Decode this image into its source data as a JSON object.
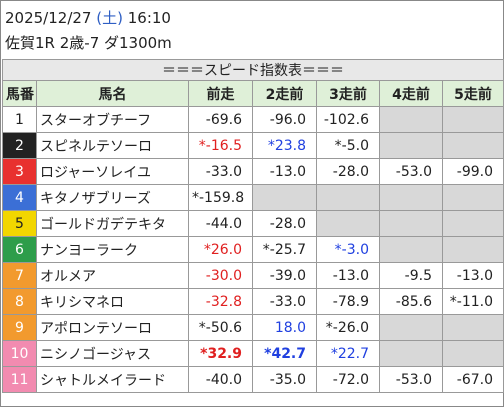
{
  "header": {
    "date": "2025/12/27",
    "weekday": "(土)",
    "time": "16:10",
    "race": "佐賀1R 2歳-7 ダ1300m"
  },
  "table": {
    "title": "＝＝＝スピード指数表＝＝＝",
    "columns": [
      "馬番",
      "馬名",
      "前走",
      "2走前",
      "3走前",
      "4走前",
      "5走前"
    ],
    "rows": [
      {
        "num": "1",
        "frame_color": "#ffffff",
        "name": "スターオブチーフ",
        "speeds": [
          "-69.6",
          "-96.0",
          "-102.6",
          null,
          null
        ]
      },
      {
        "num": "2",
        "frame_color": "#222222",
        "name": "スピネルテソーロ",
        "speeds": [
          {
            "text": "*-16.5",
            "color": "#e02020"
          },
          {
            "text": "*23.8",
            "color": "#2040e0"
          },
          "*-5.0",
          null,
          null
        ]
      },
      {
        "num": "3",
        "frame_color": "#e8312f",
        "name": "ロジャーソレイユ",
        "speeds": [
          "-33.0",
          "-13.0",
          "-28.0",
          "-53.0",
          "-99.0"
        ]
      },
      {
        "num": "4",
        "frame_color": "#3b6fd6",
        "name": "キタノザブリーズ",
        "speeds": [
          "*-159.8",
          null,
          null,
          null,
          null
        ]
      },
      {
        "num": "5",
        "frame_color": "#f2d600",
        "name": "ゴールドガデテキタ",
        "speeds": [
          "-44.0",
          "-28.0",
          null,
          null,
          null
        ]
      },
      {
        "num": "6",
        "frame_color": "#2e9d4a",
        "name": "ナンヨーラーク",
        "speeds": [
          {
            "text": "*26.0",
            "color": "#e02020"
          },
          "*-25.7",
          {
            "text": "*-3.0",
            "color": "#2040e0"
          },
          null,
          null
        ]
      },
      {
        "num": "7",
        "frame_color": "#f29a2e",
        "name": "オルメア",
        "speeds": [
          {
            "text": "-30.0",
            "color": "#e02020"
          },
          "-39.0",
          "-13.0",
          "-9.5",
          "-13.0"
        ]
      },
      {
        "num": "8",
        "frame_color": "#f29a2e",
        "name": "キリシマネロ",
        "speeds": [
          {
            "text": "-32.8",
            "color": "#e02020"
          },
          "-33.0",
          "-78.9",
          "-85.6",
          "*-11.0"
        ]
      },
      {
        "num": "9",
        "frame_color": "#f29a2e",
        "name": "アポロンテソーロ",
        "speeds": [
          "*-50.6",
          {
            "text": "18.0",
            "color": "#2040e0"
          },
          "*-26.0",
          null,
          null
        ]
      },
      {
        "num": "10",
        "frame_color": "#f28bb0",
        "name": "ニシノゴージャス",
        "speeds": [
          {
            "text": "*32.9",
            "color": "#e02020",
            "bold": true
          },
          {
            "text": "*42.7",
            "color": "#2040e0",
            "bold": true
          },
          {
            "text": "*22.7",
            "color": "#2040e0"
          },
          null,
          null
        ]
      },
      {
        "num": "11",
        "frame_color": "#f28bb0",
        "name": "シャトルメイラード",
        "speeds": [
          "-40.0",
          "-35.0",
          "-72.0",
          "-53.0",
          "-67.0"
        ]
      }
    ]
  }
}
